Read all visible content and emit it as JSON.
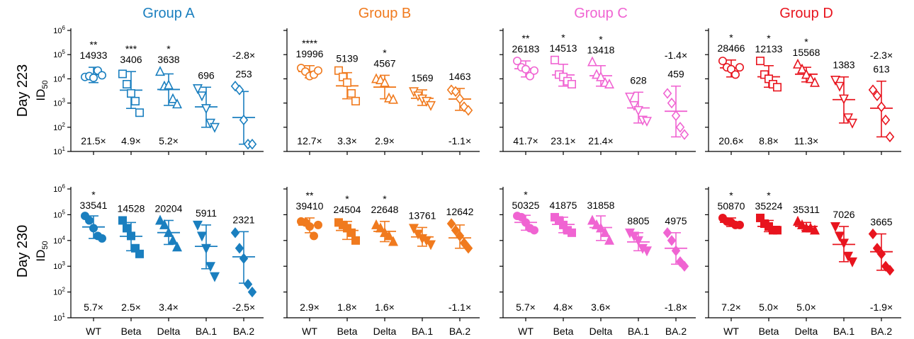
{
  "chart_data": {
    "type": "scatter",
    "categories": [
      "WT",
      "Beta",
      "Delta",
      "BA.1",
      "BA.2"
    ],
    "yscale": "log",
    "ylim": [
      10,
      1000000
    ],
    "y_ticks": [
      {
        "value": 10,
        "base": "10",
        "exp": "1"
      },
      {
        "value": 100,
        "base": "10",
        "exp": "2"
      },
      {
        "value": 1000,
        "base": "10",
        "exp": "3"
      },
      {
        "value": 10000,
        "base": "10",
        "exp": "4"
      },
      {
        "value": 100000,
        "base": "10",
        "exp": "5"
      },
      {
        "value": 1000000,
        "base": "10",
        "exp": "6"
      }
    ],
    "ylabel": {
      "main": "ID",
      "sub": "50"
    },
    "groups": [
      {
        "title": "Group A",
        "color": "#1a7fbf"
      },
      {
        "title": "Group B",
        "color": "#f07a1e"
      },
      {
        "title": "Group C",
        "color": "#f064d2"
      },
      {
        "title": "Group D",
        "color": "#e8141e"
      }
    ],
    "rows": [
      {
        "label": "Day 223",
        "filled": false,
        "panels": [
          {
            "group": "Group A",
            "geomean": [
              "14933",
              "3406",
              "3638",
              "696",
              "253"
            ],
            "fold": [
              "21.5×",
              "4.9×",
              "5.2×",
              "",
              ""
            ],
            "top_fold": [
              "",
              "",
              "",
              "",
              "-2.8×"
            ],
            "sig": [
              "**",
              "***",
              "*",
              "",
              ""
            ],
            "stats": [
              {
                "mean": 14933,
                "sd_low": 7000,
                "sd_high": 30000
              },
              {
                "mean": 3406,
                "sd_low": 600,
                "sd_high": 20000
              },
              {
                "mean": 3638,
                "sd_low": 800,
                "sd_high": 16000
              },
              {
                "mean": 696,
                "sd_low": 100,
                "sd_high": 4500
              },
              {
                "mean": 253,
                "sd_low": 20,
                "sd_high": 3000
              }
            ],
            "points": [
              [
                12000,
                13000,
                11000,
                22000,
                14000
              ],
              [
                16000,
                6000,
                2500,
                1200,
                400
              ],
              [
                20000,
                5000,
                5500,
                1500,
                900
              ],
              [
                4000,
                2000,
                600,
                150,
                100
              ],
              [
                5000,
                3500,
                200,
                20,
                20
              ]
            ]
          },
          {
            "group": "Group B",
            "geomean": [
              "19996",
              "5139",
              "4567",
              "1569",
              "1463"
            ],
            "fold": [
              "12.7×",
              "3.3×",
              "2.9×",
              "",
              "-1.1×"
            ],
            "top_fold": [
              "",
              "",
              "",
              "",
              ""
            ],
            "sig": [
              "****",
              "",
              "*",
              "",
              ""
            ],
            "stats": [
              {
                "mean": 19996,
                "sd_low": 11000,
                "sd_high": 35000
              },
              {
                "mean": 5139,
                "sd_low": 1500,
                "sd_high": 18000
              },
              {
                "mean": 4567,
                "sd_low": 1500,
                "sd_high": 14000
              },
              {
                "mean": 1569,
                "sd_low": 800,
                "sd_high": 3500
              },
              {
                "mean": 1463,
                "sd_low": 500,
                "sd_high": 4000
              }
            ],
            "points": [
              [
                28000,
                20000,
                13000,
                15000,
                22000
              ],
              [
                22000,
                12000,
                7000,
                2500,
                1200
              ],
              [
                10000,
                9000,
                7000,
                1600,
                1400
              ],
              [
                3000,
                2000,
                1500,
                1200,
                800
              ],
              [
                3500,
                3000,
                1500,
                700,
                500
              ]
            ]
          },
          {
            "group": "Group C",
            "geomean": [
              "26183",
              "14513",
              "13418",
              "628",
              "459"
            ],
            "fold": [
              "41.7×",
              "23.1×",
              "21.4×",
              "",
              ""
            ],
            "top_fold": [
              "",
              "",
              "",
              "",
              "-1.4×"
            ],
            "sig": [
              "**",
              "*",
              "*",
              "",
              ""
            ],
            "stats": [
              {
                "mean": 26183,
                "sd_low": 12000,
                "sd_high": 55000
              },
              {
                "mean": 14513,
                "sd_low": 5000,
                "sd_high": 40000
              },
              {
                "mean": 13418,
                "sd_low": 5000,
                "sd_high": 35000
              },
              {
                "mean": 628,
                "sd_low": 150,
                "sd_high": 2800
              },
              {
                "mean": 459,
                "sd_low": 40,
                "sd_high": 5000
              }
            ],
            "points": [
              [
                55000,
                30000,
                25000,
                13000,
                22000
              ],
              [
                60000,
                15000,
                12000,
                8000,
                6000
              ],
              [
                50000,
                15000,
                12000,
                7000,
                6000
              ],
              [
                1800,
                800,
                500,
                200,
                180
              ],
              [
                2500,
                1000,
                300,
                100,
                50
              ]
            ]
          },
          {
            "group": "Group D",
            "geomean": [
              "28466",
              "12133",
              "15568",
              "1383",
              "613"
            ],
            "fold": [
              "20.6×",
              "8.8×",
              "11.3×",
              "",
              ""
            ],
            "top_fold": [
              "",
              "",
              "",
              "",
              "-2.3×"
            ],
            "sig": [
              "*",
              "*",
              "*",
              "",
              ""
            ],
            "stats": [
              {
                "mean": 28466,
                "sd_low": 12000,
                "sd_high": 60000
              },
              {
                "mean": 12133,
                "sd_low": 4500,
                "sd_high": 35000
              },
              {
                "mean": 15568,
                "sd_low": 7500,
                "sd_high": 30000
              },
              {
                "mean": 1383,
                "sd_low": 150,
                "sd_high": 12000
              },
              {
                "mean": 613,
                "sd_low": 40,
                "sd_high": 8000
              }
            ],
            "points": [
              [
                55000,
                30000,
                25000,
                15000,
                30000
              ],
              [
                55000,
                15000,
                10000,
                6000,
                4500
              ],
              [
                40000,
                25000,
                15000,
                10000,
                7000
              ],
              [
                9000,
                5000,
                1500,
                250,
                150
              ],
              [
                3500,
                2000,
                700,
                200,
                40
              ]
            ]
          }
        ]
      },
      {
        "label": "Day 230",
        "filled": true,
        "panels": [
          {
            "group": "Group A",
            "geomean": [
              "33541",
              "14528",
              "20204",
              "5911",
              "2321"
            ],
            "fold": [
              "5.7×",
              "2.5×",
              "3.4×",
              "",
              "-2.5×"
            ],
            "top_fold": [
              "",
              "",
              "",
              "",
              ""
            ],
            "sig": [
              "*",
              "",
              "",
              "",
              ""
            ],
            "stats": [
              {
                "mean": 33541,
                "sd_low": 12000,
                "sd_high": 90000
              },
              {
                "mean": 14528,
                "sd_low": 4000,
                "sd_high": 50000
              },
              {
                "mean": 20204,
                "sd_low": 7000,
                "sd_high": 60000
              },
              {
                "mean": 5911,
                "sd_low": 800,
                "sd_high": 40000
              },
              {
                "mean": 2321,
                "sd_low": 220,
                "sd_high": 22000
              }
            ],
            "points": [
              [
                90000,
                60000,
                30000,
                15000,
                12000
              ],
              [
                60000,
                30000,
                15000,
                5000,
                3000
              ],
              [
                60000,
                40000,
                20000,
                10000,
                5500
              ],
              [
                40000,
                15000,
                5000,
                1000,
                400
              ],
              [
                20000,
                5000,
                2000,
                200,
                100
              ]
            ]
          },
          {
            "group": "Group B",
            "geomean": [
              "39410",
              "24504",
              "22648",
              "13761",
              "12642"
            ],
            "fold": [
              "2.9×",
              "1.8×",
              "1.6×",
              "",
              "-1.1×"
            ],
            "top_fold": [
              "",
              "",
              "",
              "",
              ""
            ],
            "sig": [
              "**",
              "*",
              "*",
              "",
              ""
            ],
            "stats": [
              {
                "mean": 39410,
                "sd_low": 20000,
                "sd_high": 75000
              },
              {
                "mean": 24504,
                "sd_low": 11000,
                "sd_high": 55000
              },
              {
                "mean": 22648,
                "sd_low": 9000,
                "sd_high": 55000
              },
              {
                "mean": 13761,
                "sd_low": 6000,
                "sd_high": 32000
              },
              {
                "mean": 12642,
                "sd_low": 5000,
                "sd_high": 40000
              }
            ],
            "points": [
              [
                55000,
                50000,
                35000,
                15000,
                40000
              ],
              [
                50000,
                40000,
                30000,
                20000,
                10000
              ],
              [
                40000,
                30000,
                20000,
                15000,
                9000
              ],
              [
                30000,
                18000,
                12000,
                10000,
                7000
              ],
              [
                45000,
                25000,
                15000,
                8000,
                5000
              ]
            ]
          },
          {
            "group": "Group C",
            "geomean": [
              "50325",
              "41875",
              "31858",
              "8805",
              "4975"
            ],
            "fold": [
              "5.7×",
              "4.8×",
              "3.6×",
              "",
              "-1.8×"
            ],
            "top_fold": [
              "",
              "",
              "",
              "",
              ""
            ],
            "sig": [
              "*",
              "",
              "",
              "",
              ""
            ],
            "stats": [
              {
                "mean": 50325,
                "sd_low": 25000,
                "sd_high": 95000
              },
              {
                "mean": 41875,
                "sd_low": 20000,
                "sd_high": 80000
              },
              {
                "mean": 31858,
                "sd_low": 10000,
                "sd_high": 90000
              },
              {
                "mean": 8805,
                "sd_low": 4000,
                "sd_high": 20000
              },
              {
                "mean": 4975,
                "sd_low": 1200,
                "sd_high": 20000
              }
            ],
            "points": [
              [
                90000,
                80000,
                50000,
                30000,
                25000
              ],
              [
                80000,
                60000,
                40000,
                25000,
                20000
              ],
              [
                60000,
                40000,
                30000,
                20000,
                10000
              ],
              [
                20000,
                15000,
                10000,
                5000,
                4000
              ],
              [
                20000,
                10000,
                4000,
                1500,
                1000
              ]
            ]
          },
          {
            "group": "Group D",
            "geomean": [
              "50870",
              "35224",
              "35311",
              "7026",
              "3665"
            ],
            "fold": [
              "7.2×",
              "5.0×",
              "5.0×",
              "",
              "-1.9×"
            ],
            "top_fold": [
              "",
              "",
              "",
              "",
              ""
            ],
            "sig": [
              "*",
              "*",
              "",
              "",
              ""
            ],
            "stats": [
              {
                "mean": 50870,
                "sd_low": 35000,
                "sd_high": 75000
              },
              {
                "mean": 35224,
                "sd_low": 22000,
                "sd_high": 60000
              },
              {
                "mean": 35311,
                "sd_low": 25000,
                "sd_high": 50000
              },
              {
                "mean": 7026,
                "sd_low": 1500,
                "sd_high": 35000
              },
              {
                "mean": 3665,
                "sd_low": 700,
                "sd_high": 18000
              }
            ],
            "points": [
              [
                75000,
                55000,
                50000,
                40000,
                40000
              ],
              [
                75000,
                45000,
                35000,
                25000,
                25000
              ],
              [
                55000,
                40000,
                30000,
                30000,
                25000
              ],
              [
                35000,
                15000,
                8000,
                2500,
                1500
              ],
              [
                18000,
                5000,
                3000,
                1000,
                700
              ]
            ]
          }
        ]
      }
    ]
  }
}
